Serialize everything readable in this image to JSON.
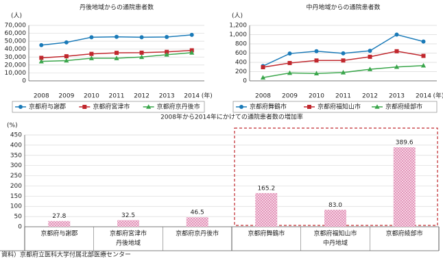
{
  "chart_data": [
    {
      "type": "line",
      "title": "丹後地域からの通院患者数",
      "y_label": "(人)",
      "x_label": "(年)",
      "categories": [
        "2008",
        "2009",
        "2010",
        "2011",
        "2012",
        "2013",
        "2014"
      ],
      "ylim": [
        0,
        70000
      ],
      "yticks": [
        0,
        {
          "value": 10000,
          "label": "10,000"
        },
        {
          "value": 20000,
          "label": "20,000"
        },
        {
          "value": 30000,
          "label": "30,000"
        },
        {
          "value": 40000,
          "label": "40,000"
        },
        {
          "value": 50000,
          "label": "50,000"
        },
        {
          "value": 60000,
          "label": "60,000"
        },
        {
          "value": 70000,
          "label": "70,000"
        }
      ],
      "grid": true,
      "series": [
        {
          "name": "京都府与謝郡",
          "color": "#1a7ab8",
          "marker": "circle",
          "values": [
            45000,
            48500,
            55000,
            55500,
            55000,
            55300,
            58000
          ]
        },
        {
          "name": "京都府宮津市",
          "color": "#c0272d",
          "marker": "square",
          "values": [
            29000,
            31000,
            34000,
            35300,
            35500,
            36500,
            38500
          ]
        },
        {
          "name": "京都府京丹後市",
          "color": "#3aa64b",
          "marker": "triangle",
          "values": [
            24500,
            25500,
            28500,
            28500,
            30000,
            33000,
            35500
          ]
        }
      ]
    },
    {
      "type": "line",
      "title": "中丹地域からの通院患者数",
      "y_label": "(人)",
      "x_label": "(年)",
      "categories": [
        "2008",
        "2009",
        "2010",
        "2011",
        "2012",
        "2013",
        "2014"
      ],
      "ylim": [
        0,
        1200
      ],
      "yticks": [
        0,
        200,
        400,
        600,
        800,
        {
          "value": 1000,
          "label": "1,000"
        },
        {
          "value": 1200,
          "label": "1,200"
        }
      ],
      "grid": true,
      "series": [
        {
          "name": "京都府舞鶴市",
          "color": "#1a7ab8",
          "marker": "circle",
          "values": [
            320,
            590,
            640,
            595,
            650,
            1000,
            850
          ]
        },
        {
          "name": "京都府福知山市",
          "color": "#c0272d",
          "marker": "square",
          "values": [
            295,
            385,
            440,
            440,
            520,
            640,
            540
          ]
        },
        {
          "name": "京都府綾部市",
          "color": "#3aa64b",
          "marker": "triangle",
          "values": [
            70,
            170,
            160,
            180,
            250,
            300,
            330
          ]
        }
      ]
    },
    {
      "type": "bar",
      "title": "2008年から2014年にかけての通院患者数の増加率",
      "y_label": "(%)",
      "categories": [
        "京都府与謝郡",
        "京都府宮津市",
        "京都府京丹後市",
        "京都府舞鶴市",
        "京都府福知山市",
        "京都府綾部市"
      ],
      "groups": [
        "丹後地域",
        "丹後地域",
        "丹後地域",
        "中丹地域",
        "中丹地域",
        "中丹地域"
      ],
      "highlight": "中丹地域",
      "values": [
        27.8,
        32.5,
        46.5,
        165.2,
        83.0,
        389.6
      ],
      "value_labels": [
        "27.8",
        "32.5",
        "46.5",
        "165.2",
        "83.0",
        "389.6"
      ],
      "ylim": [
        0,
        450
      ],
      "yticks": [
        0,
        50,
        100,
        150,
        200,
        250,
        300,
        350,
        400,
        450
      ],
      "grid": true,
      "color": "#e9a5c6"
    }
  ],
  "source": "資料）京都府立医科大学付属北部医療センター"
}
